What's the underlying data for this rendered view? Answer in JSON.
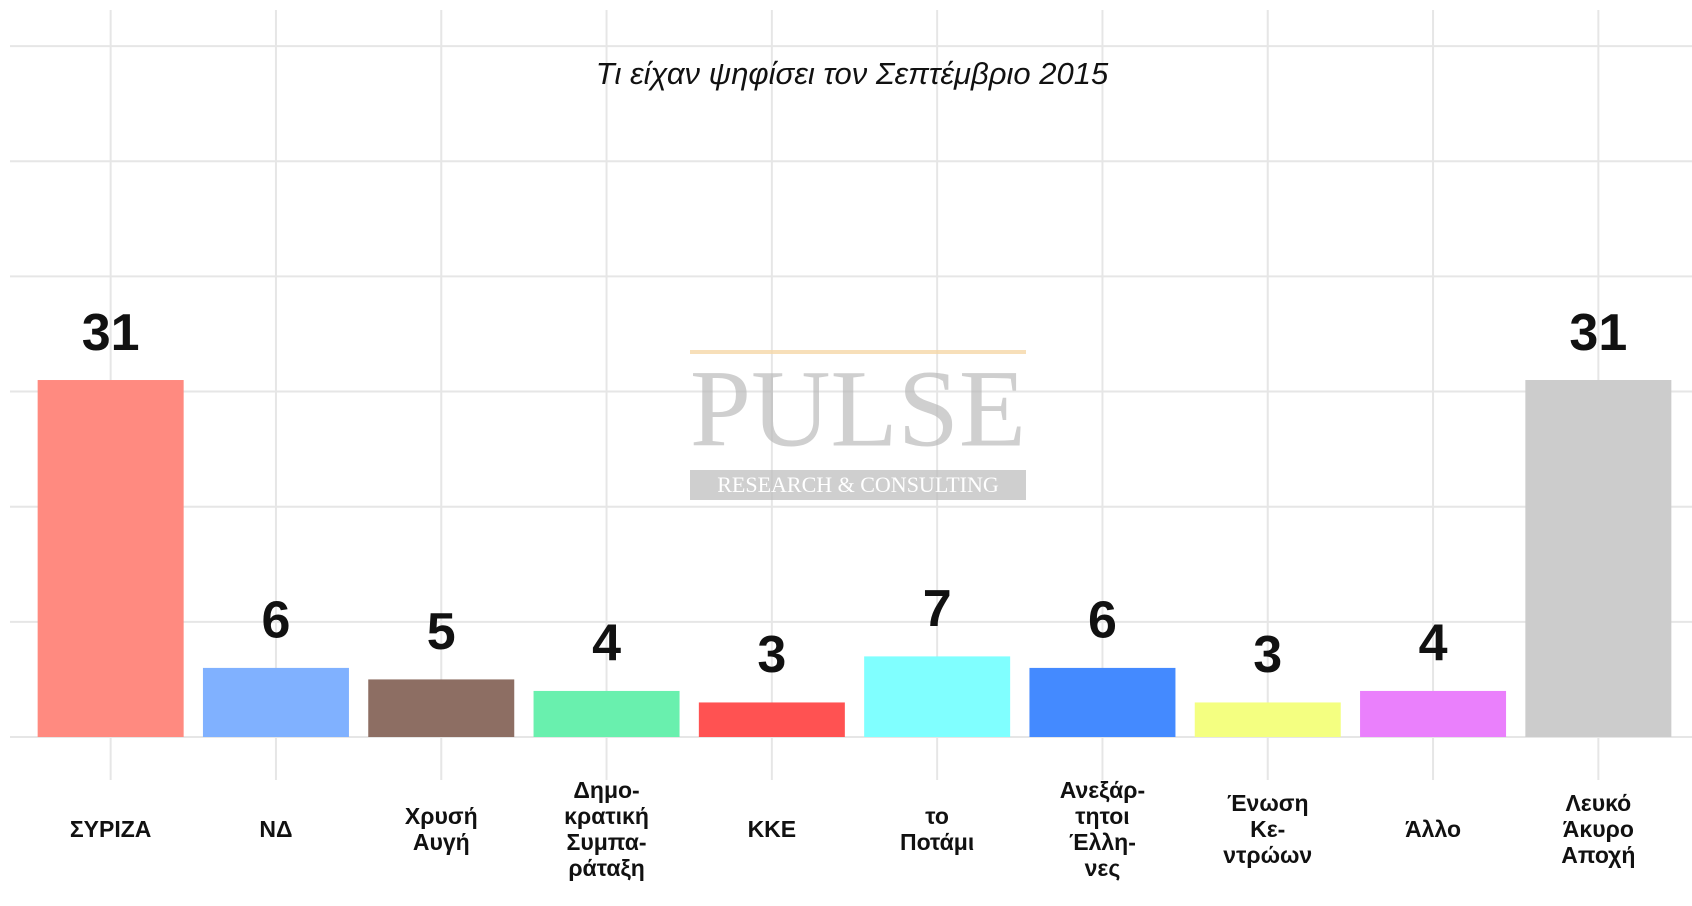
{
  "chart_data": {
    "type": "bar",
    "subtitle": "Τι είχαν ψηφίσει τον Σεπτέμβριο 2015",
    "watermark": [
      "PULSE",
      "RESEARCH & CONSULTING"
    ],
    "categories": [
      [
        "ΣΥΡΙΖΑ"
      ],
      [
        "ΝΔ"
      ],
      [
        "Χρυσή",
        "Αυγή"
      ],
      [
        "Δημο-",
        "κρατική",
        "Συμπα-",
        "ράταξη"
      ],
      [
        "ΚΚΕ"
      ],
      [
        "το",
        "Ποτάμι"
      ],
      [
        "Ανεξάρ-",
        "τητοι",
        "Έλλη-",
        "νες"
      ],
      [
        "Ένωση",
        "Κε-",
        "ντρώων"
      ],
      [
        "Άλλο"
      ],
      [
        "Λευκό",
        "Άκυρο",
        "Αποχή"
      ]
    ],
    "values": [
      31,
      6,
      5,
      4,
      3,
      7,
      6,
      3,
      4,
      31
    ],
    "colors": [
      "#ff8a80",
      "#80b1ff",
      "#8d6e63",
      "#69f0ae",
      "#ff5252",
      "#80ffff",
      "#448aff",
      "#f4ff81",
      "#ea80fc",
      "#cccccc"
    ],
    "ylim": [
      0,
      64
    ],
    "yticks": [
      0,
      10,
      20,
      30,
      40,
      50,
      60
    ],
    "grid": true
  }
}
